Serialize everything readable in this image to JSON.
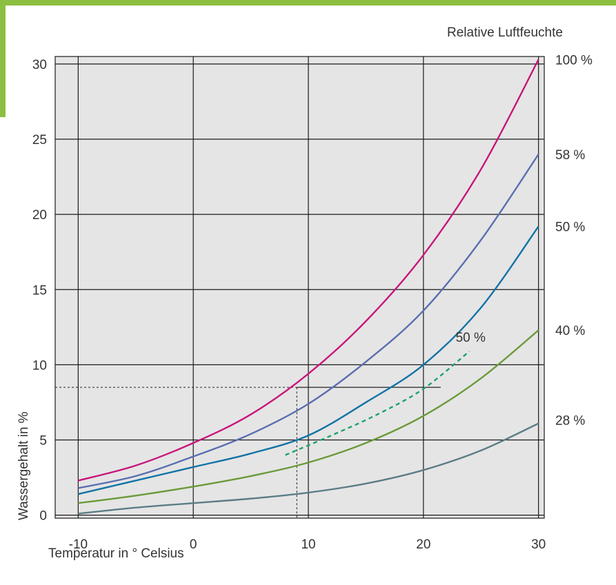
{
  "chart_data": {
    "type": "line",
    "legend_title": "Relative Luftfeuchte",
    "xlabel": "Temperatur in ° Celsius",
    "ylabel": "Wassergehalt in %",
    "xlim": [
      -12,
      30.5
    ],
    "ylim": [
      -0.2,
      30.5
    ],
    "x_ticks": [
      "-10",
      "0",
      "10",
      "20",
      "30"
    ],
    "y_ticks": [
      "0",
      "5",
      "10",
      "15",
      "20",
      "25",
      "30"
    ],
    "grid": true,
    "series": [
      {
        "name": "100 %",
        "color": "#c8157a",
        "dashed": false,
        "x": [
          -10,
          -5,
          0,
          5,
          10,
          15,
          20,
          25,
          30
        ],
        "y": [
          2.3,
          3.3,
          4.8,
          6.7,
          9.4,
          12.9,
          17.3,
          23.0,
          30.3
        ]
      },
      {
        "name": "58 %",
        "color": "#5a6eb0",
        "dashed": false,
        "x": [
          -10,
          -5,
          0,
          5,
          10,
          15,
          20,
          25,
          30
        ],
        "y": [
          1.8,
          2.6,
          3.9,
          5.4,
          7.4,
          10.2,
          13.6,
          18.3,
          24.0
        ]
      },
      {
        "name": "50 %",
        "color": "#0f73a6",
        "dashed": false,
        "x": [
          -10,
          -5,
          0,
          5,
          10,
          15,
          20,
          25,
          30
        ],
        "y": [
          1.4,
          2.3,
          3.2,
          4.1,
          5.3,
          7.5,
          10.0,
          13.8,
          19.2
        ]
      },
      {
        "name": "40 %",
        "color": "#6a9a38",
        "dashed": false,
        "x": [
          -10,
          -5,
          0,
          5,
          10,
          15,
          20,
          25,
          30
        ],
        "y": [
          0.8,
          1.3,
          1.9,
          2.6,
          3.5,
          4.8,
          6.6,
          9.1,
          12.3
        ]
      },
      {
        "name": "28 %",
        "color": "#5c7c86",
        "dashed": false,
        "x": [
          -10,
          -5,
          0,
          5,
          10,
          15,
          20,
          25,
          30
        ],
        "y": [
          0.1,
          0.5,
          0.8,
          1.1,
          1.5,
          2.1,
          3.0,
          4.3,
          6.1
        ]
      },
      {
        "name": "50 %",
        "color": "#1aa36a",
        "dashed": true,
        "x": [
          8,
          12,
          16,
          20,
          24
        ],
        "y": [
          4.0,
          5.3,
          6.7,
          8.4,
          10.9
        ]
      }
    ],
    "reference_point": {
      "x": 9,
      "y": 8.5
    }
  }
}
